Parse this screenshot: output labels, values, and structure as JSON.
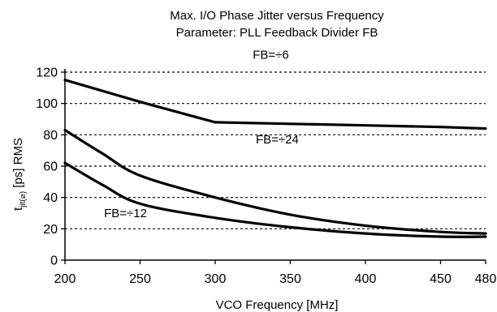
{
  "chart_data": {
    "type": "line",
    "title": "Max. I/O Phase Jitter versus Frequency",
    "subtitle": "Parameter: PLL Feedback Divider FB",
    "xlabel": "VCO Frequency [MHz]",
    "ylabel": {
      "base": "t",
      "subscript": "jit(⌀)",
      "rest": " [ps] RMS"
    },
    "xlim": [
      200,
      480
    ],
    "ylim": [
      0,
      120
    ],
    "x_ticks": [
      "200",
      "250",
      "300",
      "350",
      "400",
      "450",
      "480"
    ],
    "y_ticks": [
      "0",
      "20",
      "40",
      "60",
      "80",
      "100",
      "120"
    ],
    "grid": "horizontal dashed",
    "series": [
      {
        "name": "FB=÷6",
        "x": [
          200,
          250,
          300,
          350,
          400,
          450,
          480
        ],
        "y": [
          115,
          101,
          88,
          87,
          86,
          85,
          84
        ]
      },
      {
        "name": "FB=÷24",
        "x": [
          200,
          225,
          250,
          300,
          350,
          400,
          450,
          480
        ],
        "y": [
          83,
          68,
          54,
          40,
          29,
          22,
          18,
          17
        ]
      },
      {
        "name": "FB=÷12",
        "x": [
          200,
          225,
          250,
          300,
          350,
          400,
          450,
          480
        ],
        "y": [
          62,
          48,
          36,
          27,
          21,
          17,
          15,
          15
        ]
      }
    ]
  }
}
